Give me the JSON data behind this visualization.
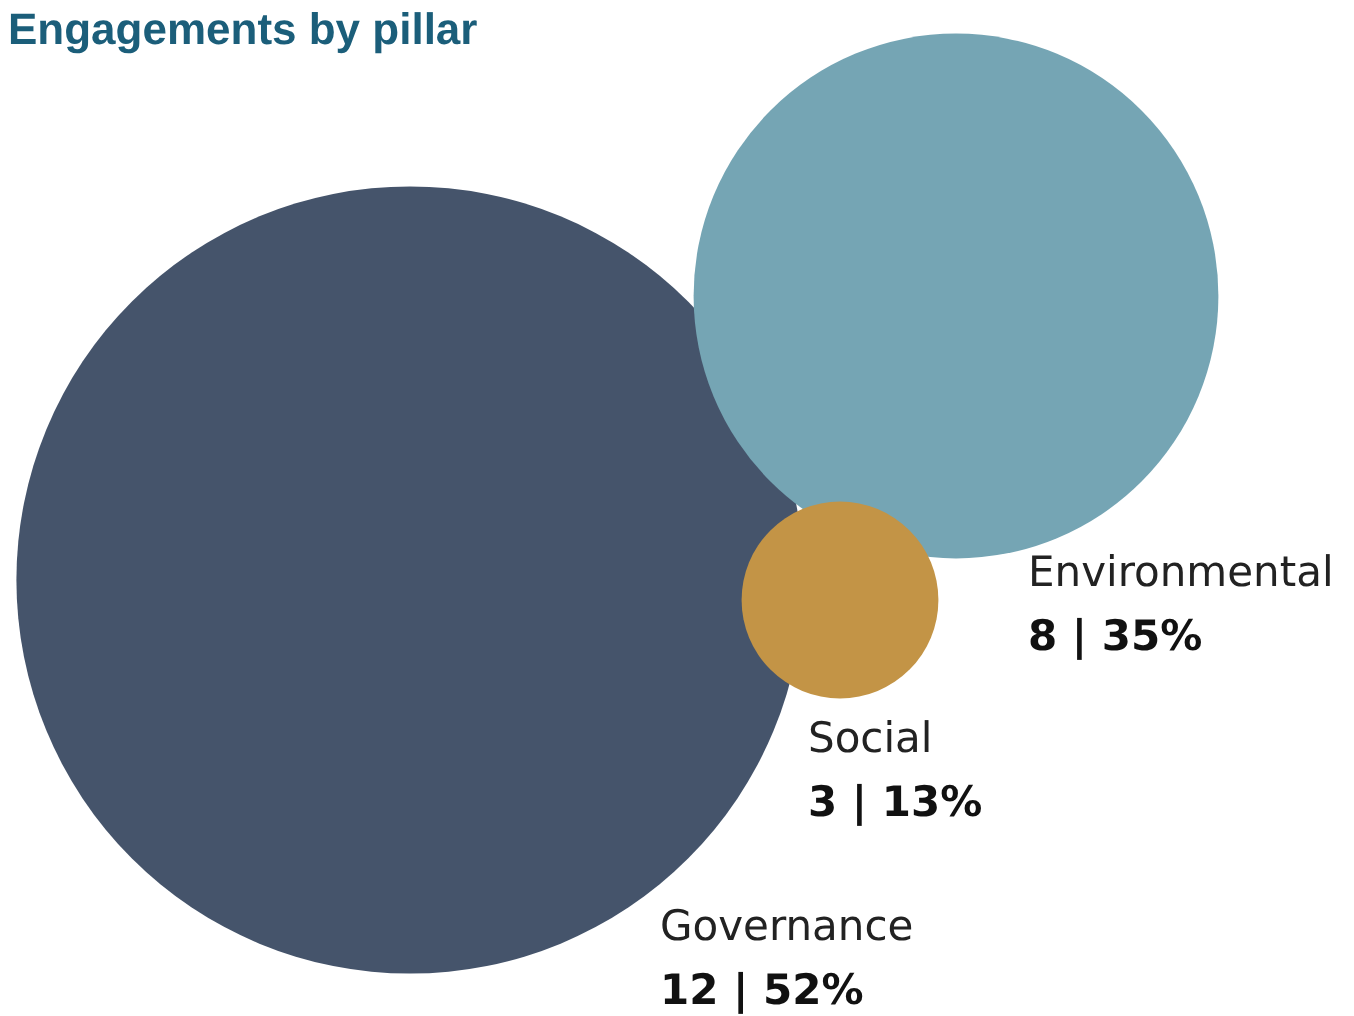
{
  "chart_data": {
    "type": "other",
    "title": "Engagements by pillar",
    "categories": [
      "Governance",
      "Environmental",
      "Social"
    ],
    "values": [
      12,
      8,
      3
    ],
    "value_labels": [
      "12 | 52%",
      "8 | 35%",
      "3 | 13%"
    ],
    "colors": [
      "#45546b",
      "#75a5b4",
      "#c39446"
    ]
  }
}
